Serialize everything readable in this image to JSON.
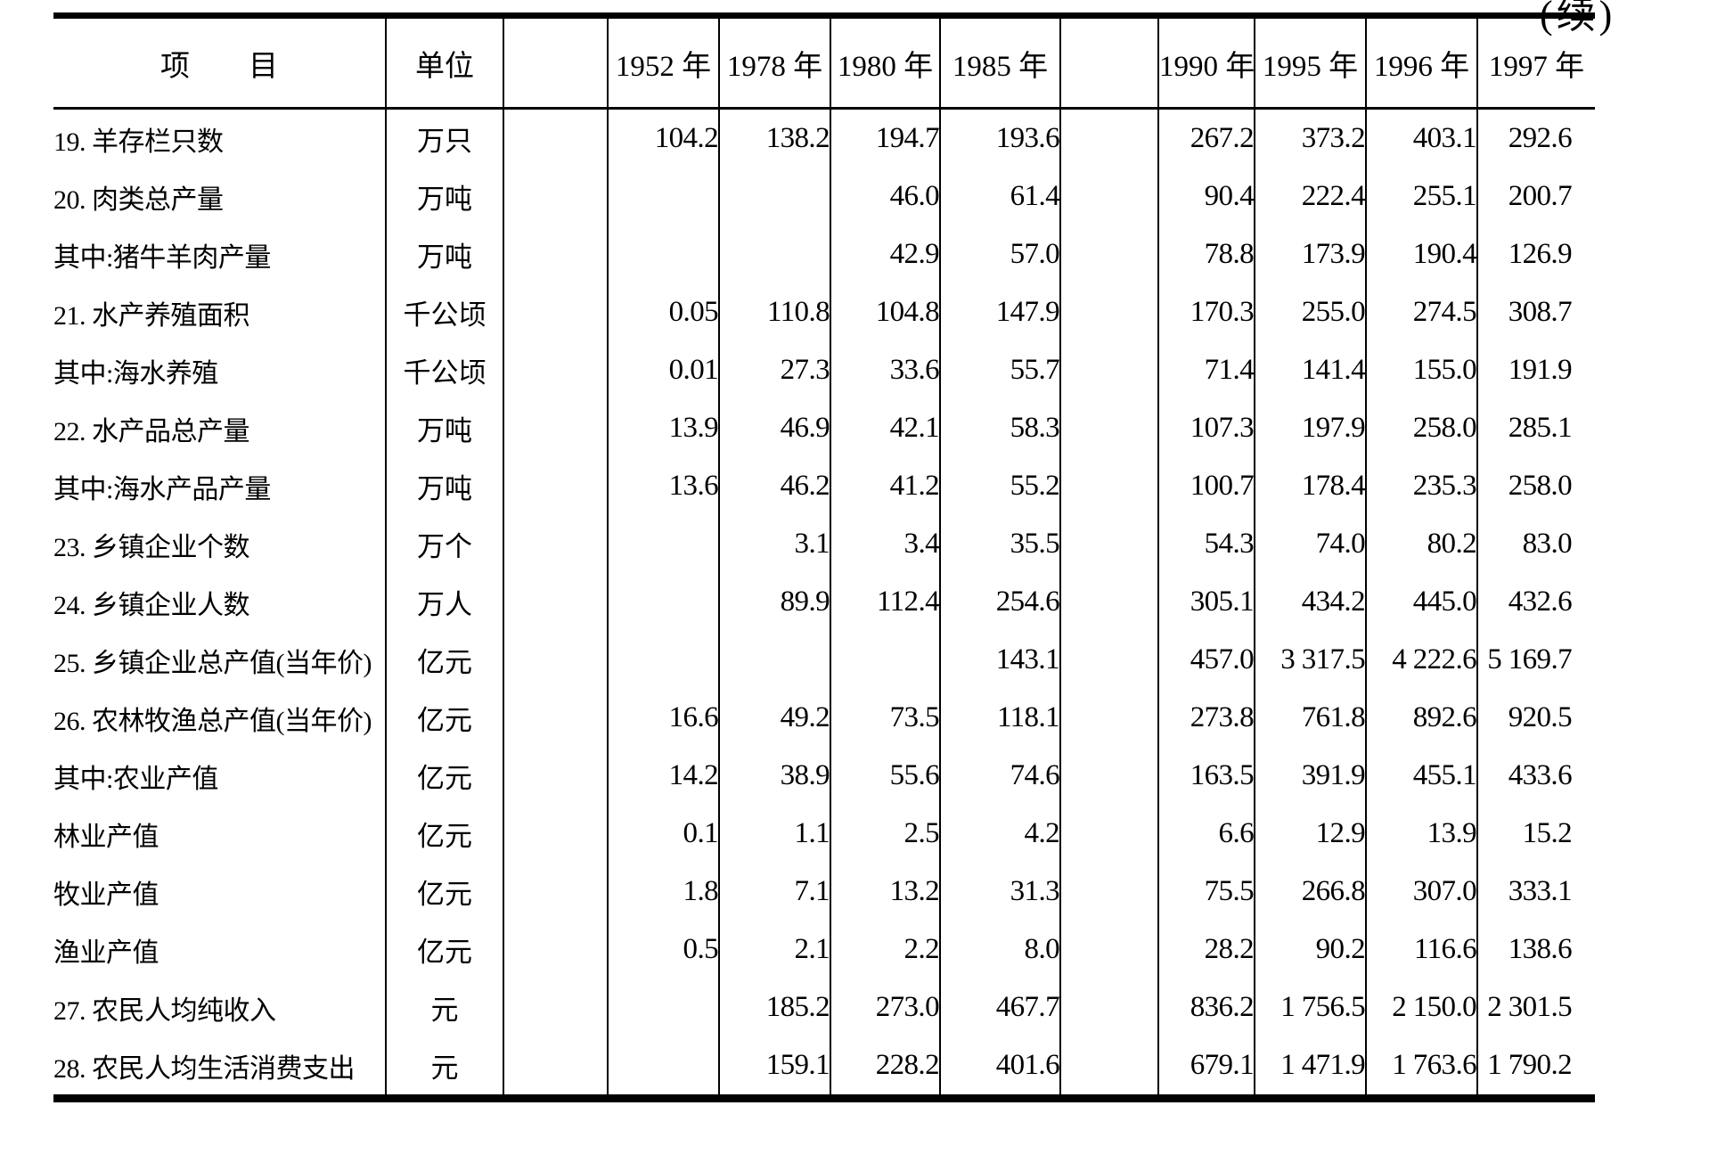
{
  "page": {
    "continuation_mark": "(续)"
  },
  "table": {
    "header": {
      "item": "项　　目",
      "unit": "单位",
      "years": [
        "1952 年",
        "1978 年",
        "1980 年",
        "1985 年",
        "1990 年",
        "1995 年",
        "1996 年",
        "1997 年"
      ]
    },
    "rows": [
      {
        "label": "19. 羊存栏只数",
        "indent": 0,
        "unit": "万只",
        "values": [
          "104.2",
          "138.2",
          "194.7",
          "193.6",
          "267.2",
          "373.2",
          "403.1",
          "292.6"
        ]
      },
      {
        "label": "20. 肉类总产量",
        "indent": 0,
        "unit": "万吨",
        "values": [
          "",
          "",
          "46.0",
          "61.4",
          "90.4",
          "222.4",
          "255.1",
          "200.7"
        ]
      },
      {
        "label": "其中:猪牛羊肉产量",
        "indent": 1,
        "unit": "万吨",
        "values": [
          "",
          "",
          "42.9",
          "57.0",
          "78.8",
          "173.9",
          "190.4",
          "126.9"
        ]
      },
      {
        "label": "21. 水产养殖面积",
        "indent": 0,
        "unit": "千公顷",
        "values": [
          "0.05",
          "110.8",
          "104.8",
          "147.9",
          "170.3",
          "255.0",
          "274.5",
          "308.7"
        ]
      },
      {
        "label": "其中:海水养殖",
        "indent": 1,
        "unit": "千公顷",
        "values": [
          "0.01",
          "27.3",
          "33.6",
          "55.7",
          "71.4",
          "141.4",
          "155.0",
          "191.9"
        ]
      },
      {
        "label": "22. 水产品总产量",
        "indent": 0,
        "unit": "万吨",
        "values": [
          "13.9",
          "46.9",
          "42.1",
          "58.3",
          "107.3",
          "197.9",
          "258.0",
          "285.1"
        ]
      },
      {
        "label": "其中:海水产品产量",
        "indent": 1,
        "unit": "万吨",
        "values": [
          "13.6",
          "46.2",
          "41.2",
          "55.2",
          "100.7",
          "178.4",
          "235.3",
          "258.0"
        ]
      },
      {
        "label": "23. 乡镇企业个数",
        "indent": 0,
        "unit": "万个",
        "values": [
          "",
          "3.1",
          "3.4",
          "35.5",
          "54.3",
          "74.0",
          "80.2",
          "83.0"
        ]
      },
      {
        "label": "24. 乡镇企业人数",
        "indent": 0,
        "unit": "万人",
        "values": [
          "",
          "89.9",
          "112.4",
          "254.6",
          "305.1",
          "434.2",
          "445.0",
          "432.6"
        ]
      },
      {
        "label": "25. 乡镇企业总产值(当年价)",
        "indent": 0,
        "unit": "亿元",
        "values": [
          "",
          "",
          "",
          "143.1",
          "457.0",
          "3 317.5",
          "4 222.6",
          "5 169.7"
        ]
      },
      {
        "label": "26. 农林牧渔总产值(当年价)",
        "indent": 0,
        "unit": "亿元",
        "values": [
          "16.6",
          "49.2",
          "73.5",
          "118.1",
          "273.8",
          "761.8",
          "892.6",
          "920.5"
        ]
      },
      {
        "label": "其中:农业产值",
        "indent": 1,
        "unit": "亿元",
        "values": [
          "14.2",
          "38.9",
          "55.6",
          "74.6",
          "163.5",
          "391.9",
          "455.1",
          "433.6"
        ]
      },
      {
        "label": "林业产值",
        "indent": 2,
        "unit": "亿元",
        "values": [
          "0.1",
          "1.1",
          "2.5",
          "4.2",
          "6.6",
          "12.9",
          "13.9",
          "15.2"
        ]
      },
      {
        "label": "牧业产值",
        "indent": 2,
        "unit": "亿元",
        "values": [
          "1.8",
          "7.1",
          "13.2",
          "31.3",
          "75.5",
          "266.8",
          "307.0",
          "333.1"
        ]
      },
      {
        "label": "渔业产值",
        "indent": 2,
        "unit": "亿元",
        "values": [
          "0.5",
          "2.1",
          "2.2",
          "8.0",
          "28.2",
          "90.2",
          "116.6",
          "138.6"
        ]
      },
      {
        "label": "27. 农民人均纯收入",
        "indent": 0,
        "unit": "元",
        "values": [
          "",
          "185.2",
          "273.0",
          "467.7",
          "836.2",
          "1 756.5",
          "2 150.0",
          "2 301.5"
        ]
      },
      {
        "label": "28. 农民人均生活消费支出",
        "indent": 0,
        "unit": "元",
        "values": [
          "",
          "159.1",
          "228.2",
          "401.6",
          "679.1",
          "1 471.9",
          "1 763.6",
          "1 790.2"
        ]
      }
    ]
  }
}
